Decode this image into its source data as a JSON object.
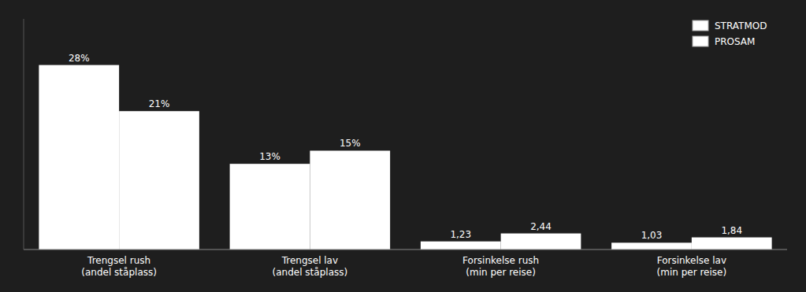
{
  "chart_data": {
    "type": "bar",
    "categories": [
      "Trengsel rush\n(andel ståplass)",
      "Trengsel lav\n(andel ståplass)",
      "Forsinkelse rush\n(min per reise)",
      "Forsinkelse lav\n(min per reise)"
    ],
    "series": [
      {
        "name": "STRATMOD",
        "color": "#ffffff",
        "values": [
          28,
          13,
          1.23,
          1.03
        ],
        "value_labels": [
          "28%",
          "13%",
          "1,23",
          "1,03"
        ]
      },
      {
        "name": "PROSAM",
        "color": "#ffffff",
        "values": [
          21,
          15,
          2.44,
          1.84
        ],
        "value_labels": [
          "21%",
          "15%",
          "2,44",
          "1,84"
        ]
      }
    ],
    "ylim": [
      0,
      35
    ],
    "yticks": [],
    "grid": false,
    "legend": "upper right",
    "data_labels": true,
    "tick_labels": "x"
  }
}
